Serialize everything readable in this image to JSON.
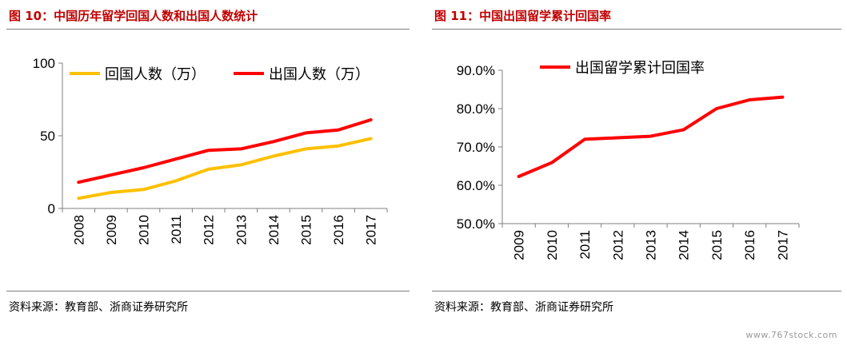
{
  "figures": [
    {
      "title": "图 10：中国历年留学回国人数和出国人数统计",
      "source": "资料来源：教育部、浙商证券研究所"
    },
    {
      "title": "图 11：中国出国留学累计回国率",
      "source": "资料来源：教育部、浙商证券研究所"
    }
  ],
  "watermark": "www.767stock.com",
  "chart_data": [
    {
      "type": "line",
      "title": "",
      "x": [
        "2008",
        "2009",
        "2010",
        "2011",
        "2012",
        "2013",
        "2014",
        "2015",
        "2016",
        "2017"
      ],
      "ylim": [
        0,
        100
      ],
      "yticks": [
        0,
        50,
        100
      ],
      "ytick_labels": [
        "0",
        "50",
        "100"
      ],
      "grid": false,
      "legend_position": "top",
      "series": [
        {
          "name": "回国人数（万）",
          "color": "#FFC000",
          "values": [
            7,
            11,
            13,
            19,
            27,
            30,
            36,
            41,
            43,
            48
          ]
        },
        {
          "name": "出国人数（万）",
          "color": "#FF0000",
          "values": [
            18,
            23,
            28,
            34,
            40,
            41,
            46,
            52,
            54,
            61
          ]
        }
      ]
    },
    {
      "type": "line",
      "title": "",
      "x": [
        "2009",
        "2010",
        "2011",
        "2012",
        "2013",
        "2014",
        "2015",
        "2016",
        "2017"
      ],
      "ylim": [
        50,
        90
      ],
      "yticks": [
        50,
        60,
        70,
        80,
        90
      ],
      "ytick_labels": [
        "50.0%",
        "60.0%",
        "70.0%",
        "80.0%",
        "90.0%"
      ],
      "grid": false,
      "legend_position": "top",
      "series": [
        {
          "name": "出国留学累计回国率",
          "color": "#FF0000",
          "values": [
            62.3,
            65.9,
            72.0,
            72.4,
            72.8,
            74.5,
            80.0,
            82.3,
            83.0
          ]
        }
      ]
    }
  ]
}
